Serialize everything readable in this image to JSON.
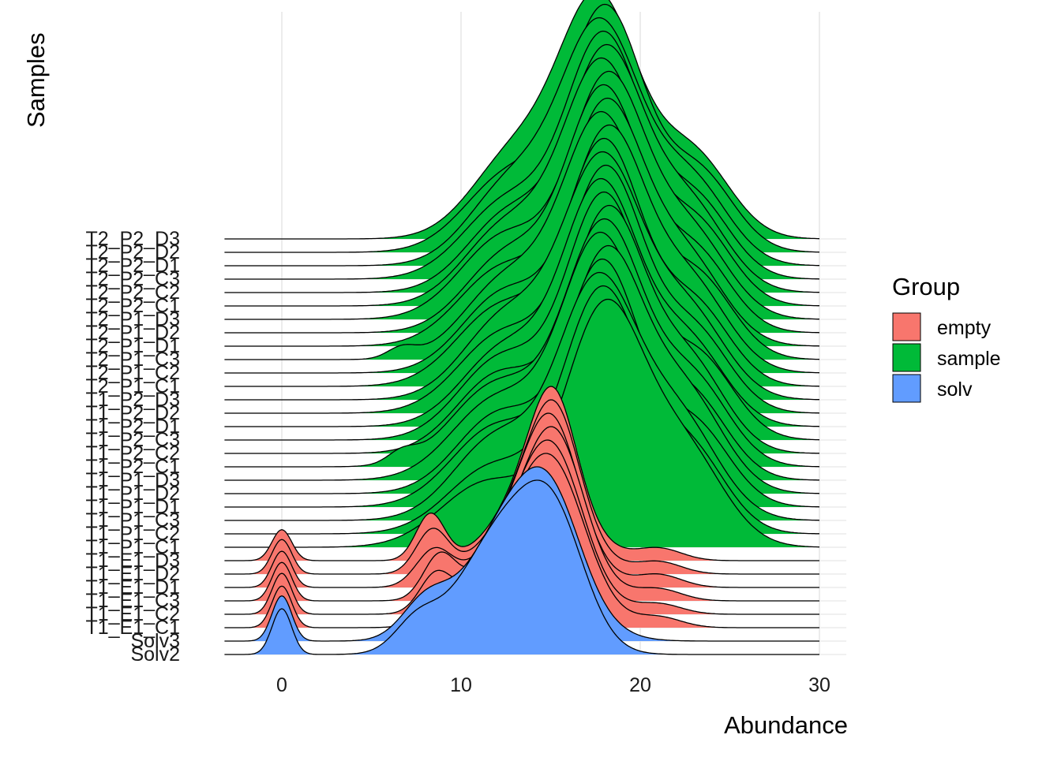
{
  "chart_data": {
    "type": "ridgeline",
    "xlabel": "Abundance",
    "ylabel": "Samples",
    "xlim": [
      -3.2,
      31.5
    ],
    "x_ticks": [
      0,
      10,
      20,
      30
    ],
    "x_tick_labels": [
      "0",
      "10",
      "20",
      "30"
    ],
    "grid": true,
    "legend": {
      "title": "Group",
      "position": "right",
      "entries": [
        {
          "label": "empty",
          "color": "#F8766D"
        },
        {
          "label": "sample",
          "color": "#00BA38"
        },
        {
          "label": "solv",
          "color": "#619CFF"
        }
      ]
    },
    "samples": [
      {
        "name": "Solv2",
        "group": "solv",
        "peak_height_rows": 13.0,
        "components": [
          [
            0,
            0.55,
            0.2
          ],
          [
            7.5,
            1.2,
            0.12
          ],
          [
            12.5,
            2.5,
            0.55
          ],
          [
            15.3,
            1.7,
            0.4
          ]
        ]
      },
      {
        "name": "Solv3",
        "group": "solv",
        "peak_height_rows": 13.0,
        "components": [
          [
            0,
            0.55,
            0.2
          ],
          [
            8,
            1.3,
            0.15
          ],
          [
            13.3,
            2.6,
            0.6
          ],
          [
            15.2,
            1.6,
            0.25
          ]
        ]
      },
      {
        "name": "T1_E1_C1",
        "group": "empty",
        "peak_height_rows": 13.0,
        "components": [
          [
            0,
            0.55,
            0.2
          ],
          [
            8.7,
            0.9,
            0.15
          ],
          [
            13.7,
            2.4,
            0.45
          ],
          [
            15.3,
            1.8,
            0.45
          ],
          [
            21,
            1.3,
            0.05
          ]
        ]
      },
      {
        "name": "T1_E1_C2",
        "group": "empty",
        "peak_height_rows": 13.0,
        "components": [
          [
            0,
            0.55,
            0.2
          ],
          [
            8.6,
            0.9,
            0.18
          ],
          [
            14,
            2.3,
            0.5
          ],
          [
            15.3,
            1.6,
            0.4
          ],
          [
            21,
            1.3,
            0.05
          ]
        ]
      },
      {
        "name": "T1_E1_C3",
        "group": "empty",
        "peak_height_rows": 13.0,
        "components": [
          [
            0,
            0.55,
            0.2
          ],
          [
            8.8,
            0.9,
            0.22
          ],
          [
            14.2,
            2.3,
            0.5
          ],
          [
            15.4,
            1.5,
            0.45
          ],
          [
            21,
            1.3,
            0.06
          ]
        ]
      },
      {
        "name": "T1_E1_D1",
        "group": "empty",
        "peak_height_rows": 13.0,
        "components": [
          [
            0,
            0.55,
            0.2
          ],
          [
            8.5,
            1.0,
            0.2
          ],
          [
            14.2,
            2.2,
            0.55
          ],
          [
            15.2,
            1.4,
            0.45
          ],
          [
            21,
            1.3,
            0.07
          ]
        ]
      },
      {
        "name": "T1_E1_D2",
        "group": "empty",
        "peak_height_rows": 13.0,
        "components": [
          [
            0,
            0.55,
            0.2
          ],
          [
            8.4,
            0.9,
            0.25
          ],
          [
            14.3,
            2.2,
            0.55
          ],
          [
            15.3,
            1.3,
            0.5
          ],
          [
            21,
            1.3,
            0.07
          ]
        ]
      },
      {
        "name": "T1_E1_D3",
        "group": "empty",
        "peak_height_rows": 13.0,
        "components": [
          [
            0,
            0.55,
            0.2
          ],
          [
            8.3,
            0.8,
            0.3
          ],
          [
            14.5,
            2.1,
            0.6
          ],
          [
            15.2,
            1.2,
            0.55
          ],
          [
            21,
            1.3,
            0.08
          ]
        ]
      },
      {
        "name": "T1_P1_C1",
        "group": "sample",
        "peak_height_rows": 18.5,
        "components": [
          [
            11.5,
            2.6,
            0.25
          ],
          [
            18.0,
            2.2,
            0.9
          ],
          [
            22.5,
            2.2,
            0.35
          ]
        ]
      },
      {
        "name": "T1_P1_C2",
        "group": "sample",
        "peak_height_rows": 18.5,
        "components": [
          [
            11.8,
            2.5,
            0.25
          ],
          [
            17.9,
            2.2,
            0.9
          ],
          [
            22.8,
            2.0,
            0.3
          ]
        ]
      },
      {
        "name": "T1_P1_C3",
        "group": "sample",
        "peak_height_rows": 18.5,
        "components": [
          [
            12,
            2.4,
            0.3
          ],
          [
            17.6,
            2.2,
            0.85
          ],
          [
            22.2,
            2.2,
            0.35
          ]
        ]
      },
      {
        "name": "T1_P1_D1",
        "group": "sample",
        "peak_height_rows": 18.5,
        "components": [
          [
            12,
            2.5,
            0.3
          ],
          [
            17.9,
            2.1,
            0.9
          ],
          [
            23,
            2.0,
            0.3
          ]
        ]
      },
      {
        "name": "T1_P1_D2",
        "group": "sample",
        "peak_height_rows": 18.5,
        "components": [
          [
            12.2,
            2.4,
            0.3
          ],
          [
            18.1,
            2.1,
            0.88
          ],
          [
            22.6,
            2.1,
            0.35
          ]
        ]
      },
      {
        "name": "T1_P1_D3",
        "group": "sample",
        "peak_height_rows": 18.5,
        "components": [
          [
            12,
            2.5,
            0.3
          ],
          [
            17.8,
            2.2,
            0.9
          ],
          [
            22.9,
            2.0,
            0.3
          ]
        ]
      },
      {
        "name": "T1_P2_C1",
        "group": "sample",
        "peak_height_rows": 18.5,
        "components": [
          [
            6.7,
            0.8,
            0.04
          ],
          [
            12,
            2.5,
            0.3
          ],
          [
            18.0,
            2.2,
            0.88
          ],
          [
            23,
            2.0,
            0.3
          ]
        ]
      },
      {
        "name": "T1_P2_C2",
        "group": "sample",
        "peak_height_rows": 18.5,
        "components": [
          [
            12.2,
            2.4,
            0.3
          ],
          [
            18.2,
            2.1,
            0.9
          ],
          [
            22.8,
            2.0,
            0.32
          ]
        ]
      },
      {
        "name": "T1_P2_C3",
        "group": "sample",
        "peak_height_rows": 18.5,
        "components": [
          [
            12.3,
            2.4,
            0.3
          ],
          [
            18.0,
            2.1,
            0.88
          ],
          [
            23.2,
            2.0,
            0.3
          ]
        ]
      },
      {
        "name": "T1_P2_D1",
        "group": "sample",
        "peak_height_rows": 18.5,
        "components": [
          [
            12.5,
            2.4,
            0.3
          ],
          [
            17.8,
            2.1,
            0.9
          ],
          [
            22.6,
            2.1,
            0.32
          ]
        ]
      },
      {
        "name": "T1_P2_D2",
        "group": "sample",
        "peak_height_rows": 18.5,
        "components": [
          [
            12.4,
            2.5,
            0.3
          ],
          [
            18.1,
            2.1,
            0.9
          ],
          [
            23.0,
            2.0,
            0.3
          ]
        ]
      },
      {
        "name": "T1_P2_D3",
        "group": "sample",
        "peak_height_rows": 18.5,
        "components": [
          [
            12.6,
            2.4,
            0.32
          ],
          [
            17.9,
            2.2,
            0.9
          ],
          [
            22.7,
            2.1,
            0.32
          ]
        ]
      },
      {
        "name": "T2_P1_C1",
        "group": "sample",
        "peak_height_rows": 18.5,
        "components": [
          [
            12.3,
            2.5,
            0.3
          ],
          [
            18.0,
            2.1,
            0.9
          ],
          [
            23.0,
            2.0,
            0.3
          ]
        ]
      },
      {
        "name": "T2_P1_C2",
        "group": "sample",
        "peak_height_rows": 18.5,
        "components": [
          [
            12.5,
            2.4,
            0.3
          ],
          [
            18.2,
            2.1,
            0.88
          ],
          [
            22.8,
            2.1,
            0.32
          ]
        ]
      },
      {
        "name": "T2_P1_C3",
        "group": "sample",
        "peak_height_rows": 18.5,
        "components": [
          [
            6.7,
            0.8,
            0.04
          ],
          [
            12.6,
            2.4,
            0.3
          ],
          [
            17.9,
            2.2,
            0.9
          ],
          [
            23.2,
            2.0,
            0.3
          ]
        ]
      },
      {
        "name": "T2_P1_D1",
        "group": "sample",
        "peak_height_rows": 18.5,
        "components": [
          [
            12.4,
            2.5,
            0.3
          ],
          [
            18.1,
            2.1,
            0.9
          ],
          [
            22.6,
            2.1,
            0.32
          ]
        ]
      },
      {
        "name": "T2_P1_D2",
        "group": "sample",
        "peak_height_rows": 18.5,
        "components": [
          [
            12.7,
            2.4,
            0.3
          ],
          [
            18.0,
            2.1,
            0.9
          ],
          [
            23.0,
            2.0,
            0.3
          ]
        ]
      },
      {
        "name": "T2_P1_D3",
        "group": "sample",
        "peak_height_rows": 18.5,
        "components": [
          [
            12.5,
            2.5,
            0.32
          ],
          [
            18.2,
            2.1,
            0.9
          ],
          [
            22.8,
            2.1,
            0.32
          ]
        ]
      },
      {
        "name": "T2_P2_C1",
        "group": "sample",
        "peak_height_rows": 18.5,
        "components": [
          [
            12.6,
            2.4,
            0.3
          ],
          [
            17.9,
            2.2,
            0.9
          ],
          [
            23.1,
            2.0,
            0.3
          ]
        ]
      },
      {
        "name": "T2_P2_C2",
        "group": "sample",
        "peak_height_rows": 18.5,
        "components": [
          [
            12.8,
            2.4,
            0.3
          ],
          [
            18.1,
            2.1,
            0.88
          ],
          [
            22.7,
            2.1,
            0.32
          ]
        ]
      },
      {
        "name": "T2_P2_C3",
        "group": "sample",
        "peak_height_rows": 18.5,
        "components": [
          [
            12.7,
            2.5,
            0.3
          ],
          [
            18.0,
            2.1,
            0.9
          ],
          [
            23.0,
            2.0,
            0.3
          ]
        ]
      },
      {
        "name": "T2_P2_D1",
        "group": "sample",
        "peak_height_rows": 18.5,
        "components": [
          [
            12.9,
            2.4,
            0.32
          ],
          [
            17.8,
            2.2,
            0.9
          ],
          [
            22.8,
            2.1,
            0.32
          ]
        ]
      },
      {
        "name": "T2_P2_D2",
        "group": "sample",
        "peak_height_rows": 18.5,
        "components": [
          [
            12.8,
            2.5,
            0.3
          ],
          [
            18.1,
            2.1,
            0.9
          ],
          [
            23.2,
            2.0,
            0.3
          ]
        ]
      },
      {
        "name": "T2_P2_D3",
        "group": "sample",
        "peak_height_rows": 18.5,
        "components": [
          [
            13.0,
            2.4,
            0.32
          ],
          [
            17.7,
            2.2,
            0.9
          ],
          [
            22.9,
            2.1,
            0.32
          ]
        ]
      }
    ]
  }
}
